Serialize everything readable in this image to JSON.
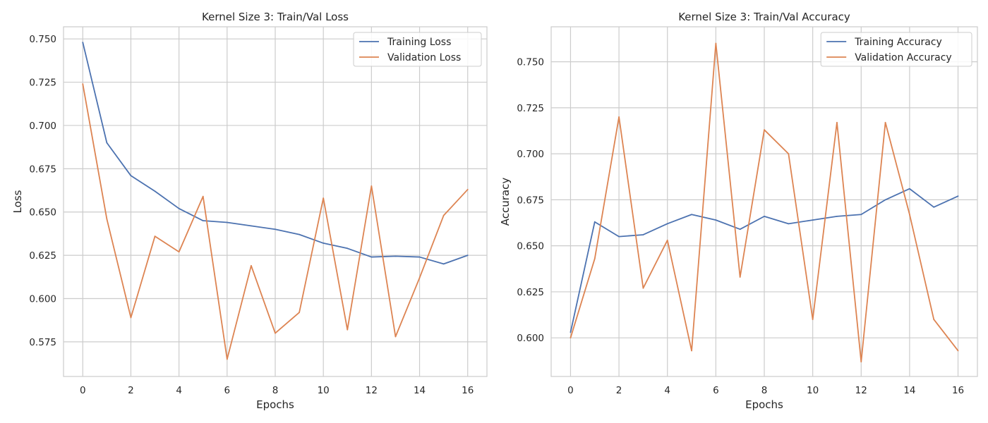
{
  "chart_data": [
    {
      "type": "line",
      "title": "Kernel Size 3:  Train/Val Loss",
      "xlabel": "Epochs",
      "ylabel": "Loss",
      "xlim": [
        -0.8,
        16.8
      ],
      "ylim": [
        0.555,
        0.757
      ],
      "xticks": [
        0,
        2,
        4,
        6,
        8,
        10,
        12,
        14,
        16
      ],
      "yticks": [
        0.575,
        0.6,
        0.625,
        0.65,
        0.675,
        0.7,
        0.725,
        0.75
      ],
      "xtick_labels": [
        "0",
        "2",
        "4",
        "6",
        "8",
        "10",
        "12",
        "14",
        "16"
      ],
      "ytick_labels": [
        "0.575",
        "0.600",
        "0.625",
        "0.650",
        "0.675",
        "0.700",
        "0.725",
        "0.750"
      ],
      "grid": true,
      "legend_position": "top-right",
      "x": [
        0,
        1,
        2,
        3,
        4,
        5,
        6,
        7,
        8,
        9,
        10,
        11,
        12,
        13,
        14,
        15,
        16
      ],
      "series": [
        {
          "name": "Training Loss",
          "color": "#4c72b0",
          "values": [
            0.748,
            0.69,
            0.671,
            0.662,
            0.652,
            0.645,
            0.644,
            0.642,
            0.64,
            0.637,
            0.632,
            0.629,
            0.624,
            0.6245,
            0.624,
            0.62,
            0.625
          ]
        },
        {
          "name": "Validation Loss",
          "color": "#dd8452",
          "values": [
            0.724,
            0.646,
            0.589,
            0.636,
            0.627,
            0.659,
            0.565,
            0.619,
            0.58,
            0.592,
            0.658,
            0.582,
            0.665,
            0.578,
            0.612,
            0.648,
            0.663
          ]
        }
      ]
    },
    {
      "type": "line",
      "title": "Kernel Size 3:  Train/Val Accuracy",
      "xlabel": "Epochs",
      "ylabel": "Accuracy",
      "xlim": [
        -0.8,
        16.8
      ],
      "ylim": [
        0.579,
        0.769
      ],
      "xticks": [
        0,
        2,
        4,
        6,
        8,
        10,
        12,
        14,
        16
      ],
      "yticks": [
        0.6,
        0.625,
        0.65,
        0.675,
        0.7,
        0.725,
        0.75
      ],
      "xtick_labels": [
        "0",
        "2",
        "4",
        "6",
        "8",
        "10",
        "12",
        "14",
        "16"
      ],
      "ytick_labels": [
        "0.600",
        "0.625",
        "0.650",
        "0.675",
        "0.700",
        "0.725",
        "0.750"
      ],
      "grid": true,
      "legend_position": "top-right",
      "x": [
        0,
        1,
        2,
        3,
        4,
        5,
        6,
        7,
        8,
        9,
        10,
        11,
        12,
        13,
        14,
        15,
        16
      ],
      "series": [
        {
          "name": "Training Accuracy",
          "color": "#4c72b0",
          "values": [
            0.603,
            0.663,
            0.655,
            0.656,
            0.662,
            0.667,
            0.664,
            0.659,
            0.666,
            0.662,
            0.664,
            0.666,
            0.667,
            0.675,
            0.681,
            0.671,
            0.677
          ]
        },
        {
          "name": "Validation Accuracy",
          "color": "#dd8452",
          "values": [
            0.6,
            0.643,
            0.72,
            0.627,
            0.653,
            0.593,
            0.76,
            0.633,
            0.713,
            0.7,
            0.61,
            0.717,
            0.587,
            0.717,
            0.667,
            0.61,
            0.593
          ]
        }
      ]
    }
  ]
}
